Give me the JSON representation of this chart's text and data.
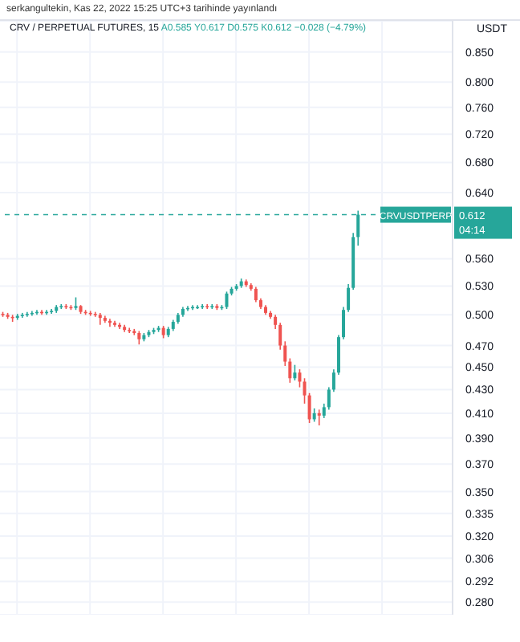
{
  "chart_data": {
    "type": "candlestick",
    "title": "CRV / PERPETUAL FUTURES, 15",
    "subtitle": "A0.585 Y0.617 D0.575 K0.612 −0.028 (−4.79%)",
    "ylabel": "USDT",
    "annotations": [
      "serkangultekin, Kas 22, 2022 15:25 UTC+3 tarihinde yayınlandı",
      "0.612",
      "04:14"
    ],
    "categories": [
      null,
      null,
      null,
      null,
      null,
      null,
      null,
      null,
      null,
      null,
      null,
      null,
      null,
      null,
      null,
      null,
      null,
      null,
      null,
      null,
      null,
      null,
      null,
      null,
      null,
      null,
      null,
      null,
      null,
      null,
      null,
      null,
      null,
      null,
      null,
      null,
      null,
      null,
      null,
      null,
      null,
      null,
      null,
      null,
      null,
      null,
      null,
      null,
      null,
      null,
      null,
      null,
      null,
      null,
      null,
      null,
      null,
      null,
      null,
      null,
      null,
      null,
      null,
      null,
      null,
      null,
      null,
      null,
      null,
      null,
      null,
      null,
      null,
      null,
      null,
      null,
      null,
      null,
      null,
      null,
      null,
      null,
      null,
      null,
      null,
      null,
      null,
      null,
      null,
      null,
      null,
      null,
      null
    ],
    "ohlc": [
      [
        0.501,
        0.503,
        0.498,
        0.5
      ],
      [
        0.5,
        0.502,
        0.496,
        0.498
      ],
      [
        0.498,
        0.5,
        0.493,
        0.497
      ],
      [
        0.497,
        0.501,
        0.495,
        0.499
      ],
      [
        0.499,
        0.502,
        0.497,
        0.5
      ],
      [
        0.5,
        0.503,
        0.498,
        0.501
      ],
      [
        0.501,
        0.504,
        0.499,
        0.502
      ],
      [
        0.502,
        0.505,
        0.5,
        0.503
      ],
      [
        0.503,
        0.505,
        0.5,
        0.502
      ],
      [
        0.502,
        0.505,
        0.5,
        0.503
      ],
      [
        0.503,
        0.506,
        0.501,
        0.504
      ],
      [
        0.504,
        0.51,
        0.502,
        0.508
      ],
      [
        0.508,
        0.511,
        0.506,
        0.509
      ],
      [
        0.509,
        0.511,
        0.506,
        0.508
      ],
      [
        0.508,
        0.51,
        0.505,
        0.507
      ],
      [
        0.507,
        0.518,
        0.505,
        0.509
      ],
      [
        0.509,
        0.51,
        0.501,
        0.503
      ],
      [
        0.503,
        0.505,
        0.5,
        0.502
      ],
      [
        0.502,
        0.504,
        0.499,
        0.501
      ],
      [
        0.501,
        0.503,
        0.498,
        0.5
      ],
      [
        0.5,
        0.502,
        0.49,
        0.497
      ],
      [
        0.497,
        0.499,
        0.492,
        0.494
      ],
      [
        0.494,
        0.496,
        0.488,
        0.492
      ],
      [
        0.492,
        0.494,
        0.488,
        0.49
      ],
      [
        0.49,
        0.492,
        0.486,
        0.488
      ],
      [
        0.488,
        0.49,
        0.483,
        0.485
      ],
      [
        0.485,
        0.487,
        0.482,
        0.484
      ],
      [
        0.484,
        0.486,
        0.48,
        0.482
      ],
      [
        0.482,
        0.484,
        0.471,
        0.476
      ],
      [
        0.476,
        0.482,
        0.474,
        0.48
      ],
      [
        0.48,
        0.485,
        0.478,
        0.483
      ],
      [
        0.483,
        0.487,
        0.481,
        0.485
      ],
      [
        0.485,
        0.489,
        0.483,
        0.487
      ],
      [
        0.487,
        0.489,
        0.477,
        0.48
      ],
      [
        0.48,
        0.488,
        0.478,
        0.486
      ],
      [
        0.486,
        0.495,
        0.484,
        0.493
      ],
      [
        0.493,
        0.502,
        0.491,
        0.5
      ],
      [
        0.5,
        0.508,
        0.498,
        0.506
      ],
      [
        0.506,
        0.509,
        0.504,
        0.507
      ],
      [
        0.507,
        0.51,
        0.505,
        0.508
      ],
      [
        0.508,
        0.51,
        0.506,
        0.508
      ],
      [
        0.508,
        0.511,
        0.506,
        0.509
      ],
      [
        0.509,
        0.511,
        0.506,
        0.508
      ],
      [
        0.508,
        0.511,
        0.506,
        0.509
      ],
      [
        0.509,
        0.511,
        0.505,
        0.507
      ],
      [
        0.507,
        0.51,
        0.505,
        0.508
      ],
      [
        0.508,
        0.524,
        0.506,
        0.522
      ],
      [
        0.522,
        0.529,
        0.52,
        0.527
      ],
      [
        0.527,
        0.532,
        0.525,
        0.53
      ],
      [
        0.53,
        0.538,
        0.528,
        0.535
      ],
      [
        0.535,
        0.537,
        0.529,
        0.531
      ],
      [
        0.531,
        0.533,
        0.525,
        0.527
      ],
      [
        0.527,
        0.529,
        0.513,
        0.515
      ],
      [
        0.515,
        0.517,
        0.506,
        0.508
      ],
      [
        0.508,
        0.51,
        0.5,
        0.502
      ],
      [
        0.502,
        0.504,
        0.496,
        0.498
      ],
      [
        0.498,
        0.5,
        0.486,
        0.49
      ],
      [
        0.49,
        0.492,
        0.466,
        0.47
      ],
      [
        0.47,
        0.474,
        0.451,
        0.455
      ],
      [
        0.455,
        0.458,
        0.436,
        0.44
      ],
      [
        0.44,
        0.452,
        0.438,
        0.445
      ],
      [
        0.445,
        0.448,
        0.432,
        0.437
      ],
      [
        0.437,
        0.44,
        0.418,
        0.425
      ],
      [
        0.425,
        0.427,
        0.402,
        0.405
      ],
      [
        0.405,
        0.414,
        0.403,
        0.41
      ],
      [
        0.41,
        0.413,
        0.4,
        0.408
      ],
      [
        0.408,
        0.418,
        0.406,
        0.415
      ],
      [
        0.415,
        0.432,
        0.413,
        0.43
      ],
      [
        0.43,
        0.448,
        0.428,
        0.445
      ],
      [
        0.445,
        0.48,
        0.443,
        0.478
      ],
      [
        0.478,
        0.508,
        0.476,
        0.505
      ],
      [
        0.505,
        0.532,
        0.503,
        0.528
      ],
      [
        0.528,
        0.59,
        0.526,
        0.585
      ],
      [
        0.585,
        0.617,
        0.575,
        0.612
      ],
      null,
      null,
      null,
      null,
      null,
      null,
      null,
      null,
      null,
      null,
      null,
      null,
      null,
      null,
      null,
      null,
      null,
      null,
      null
    ],
    "colors": [
      "#ef5350",
      "#ef5350",
      "#ef5350",
      "#26a69a",
      "#26a69a",
      "#26a69a",
      "#26a69a",
      "#26a69a",
      "#ef5350",
      "#26a69a",
      "#26a69a",
      "#26a69a",
      "#26a69a",
      "#ef5350",
      "#ef5350",
      "#26a69a",
      "#ef5350",
      "#ef5350",
      "#ef5350",
      "#ef5350",
      "#ef5350",
      "#ef5350",
      "#ef5350",
      "#ef5350",
      "#ef5350",
      "#ef5350",
      "#ef5350",
      "#ef5350",
      "#ef5350",
      "#26a69a",
      "#26a69a",
      "#26a69a",
      "#26a69a",
      "#ef5350",
      "#26a69a",
      "#26a69a",
      "#26a69a",
      "#26a69a",
      "#26a69a",
      "#26a69a",
      "#26a69a",
      "#26a69a",
      "#ef5350",
      "#26a69a",
      "#ef5350",
      "#26a69a",
      "#26a69a",
      "#26a69a",
      "#26a69a",
      "#26a69a",
      "#ef5350",
      "#ef5350",
      "#ef5350",
      "#ef5350",
      "#ef5350",
      "#ef5350",
      "#ef5350",
      "#ef5350",
      "#ef5350",
      "#ef5350",
      "#26a69a",
      "#ef5350",
      "#ef5350",
      "#ef5350",
      "#26a69a",
      "#ef5350",
      "#26a69a",
      "#26a69a",
      "#26a69a",
      "#26a69a",
      "#26a69a",
      "#26a69a",
      "#26a69a",
      "#26a69a",
      null,
      null,
      null,
      null,
      null,
      null,
      null,
      null,
      null,
      null,
      null,
      null,
      null,
      null,
      null,
      null,
      null,
      null,
      null
    ],
    "log": true,
    "ylim": [
      0.273,
      0.905
    ],
    "yticks": [
      {
        "value": 0.85,
        "label": "0.850"
      },
      {
        "value": 0.8,
        "label": "0.800"
      },
      {
        "value": 0.76,
        "label": "0.760"
      },
      {
        "value": 0.72,
        "label": "0.720"
      },
      {
        "value": 0.68,
        "label": "0.680"
      },
      {
        "value": 0.64,
        "label": "0.640"
      },
      {
        "value": 0.56,
        "label": "0.560"
      },
      {
        "value": 0.53,
        "label": "0.530"
      },
      {
        "value": 0.5,
        "label": "0.500"
      },
      {
        "value": 0.47,
        "label": "0.470"
      },
      {
        "value": 0.45,
        "label": "0.450"
      },
      {
        "value": 0.43,
        "label": "0.430"
      },
      {
        "value": 0.41,
        "label": "0.410"
      },
      {
        "value": 0.39,
        "label": "0.390"
      },
      {
        "value": 0.37,
        "label": "0.370"
      },
      {
        "value": 0.35,
        "label": "0.350"
      },
      0.335,
      {
        "value": 0.32,
        "label": "0.320"
      },
      0.306,
      0.292,
      {
        "value": 0.28,
        "label": "0.280"
      }
    ],
    "tick_labels": "y",
    "grid": true,
    "ref_lines": [
      {
        "axis": "y",
        "value": 0.612,
        "label": "CRVUSDTPERP",
        "color": "#26a69a",
        "line_style": "dashed"
      }
    ]
  }
}
